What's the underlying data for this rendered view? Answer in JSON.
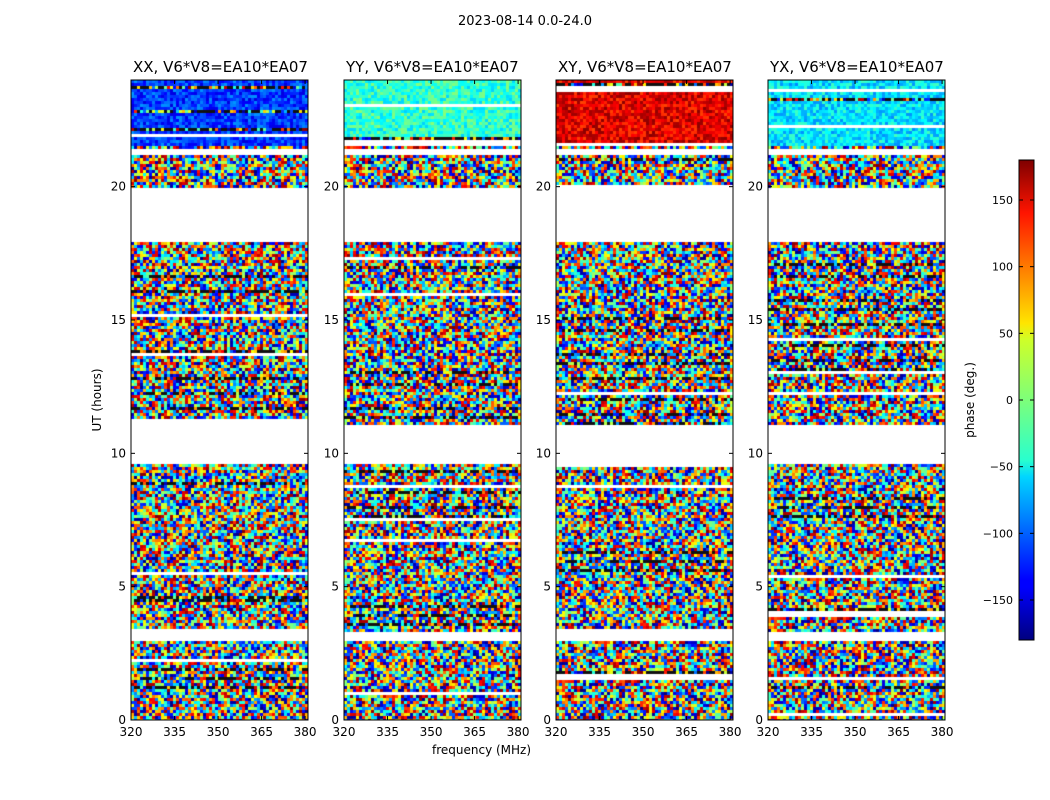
{
  "suptitle": "2023-08-14 0.0-24.0",
  "chart_data": {
    "type": "heatmap",
    "title": "2023-08-14 0.0-24.0",
    "xlabel": "frequency (MHz)",
    "ylabel": "UT (hours)",
    "xlim": [
      320,
      381
    ],
    "ylim": [
      0,
      24
    ],
    "x_ticks": [
      320,
      335,
      350,
      365,
      380
    ],
    "y_ticks": [
      0,
      5,
      10,
      15,
      20
    ],
    "panels": [
      {
        "title": "XX, V6*V8=EA10*EA07"
      },
      {
        "title": "YY, V6*V8=EA10*EA07"
      },
      {
        "title": "XY, V6*V8=EA10*EA07"
      },
      {
        "title": "YX, V6*V8=EA10*EA07"
      }
    ],
    "colorbar": {
      "label": "phase (deg.)",
      "range": [
        -180,
        180
      ],
      "ticks": [
        150,
        100,
        50,
        0,
        -50,
        -100,
        -150
      ],
      "tick_labels": [
        "150",
        "100",
        "50",
        "0",
        "−50",
        "−100",
        "−150"
      ],
      "colormap": "jet"
    },
    "flagged_ut_hours": [
      [
        19.5,
        20.0
      ],
      [
        17.95,
        19.55
      ],
      [
        9.62,
        11.15
      ],
      [
        21.3,
        21.45
      ],
      [
        3.05,
        3.3
      ]
    ]
  }
}
